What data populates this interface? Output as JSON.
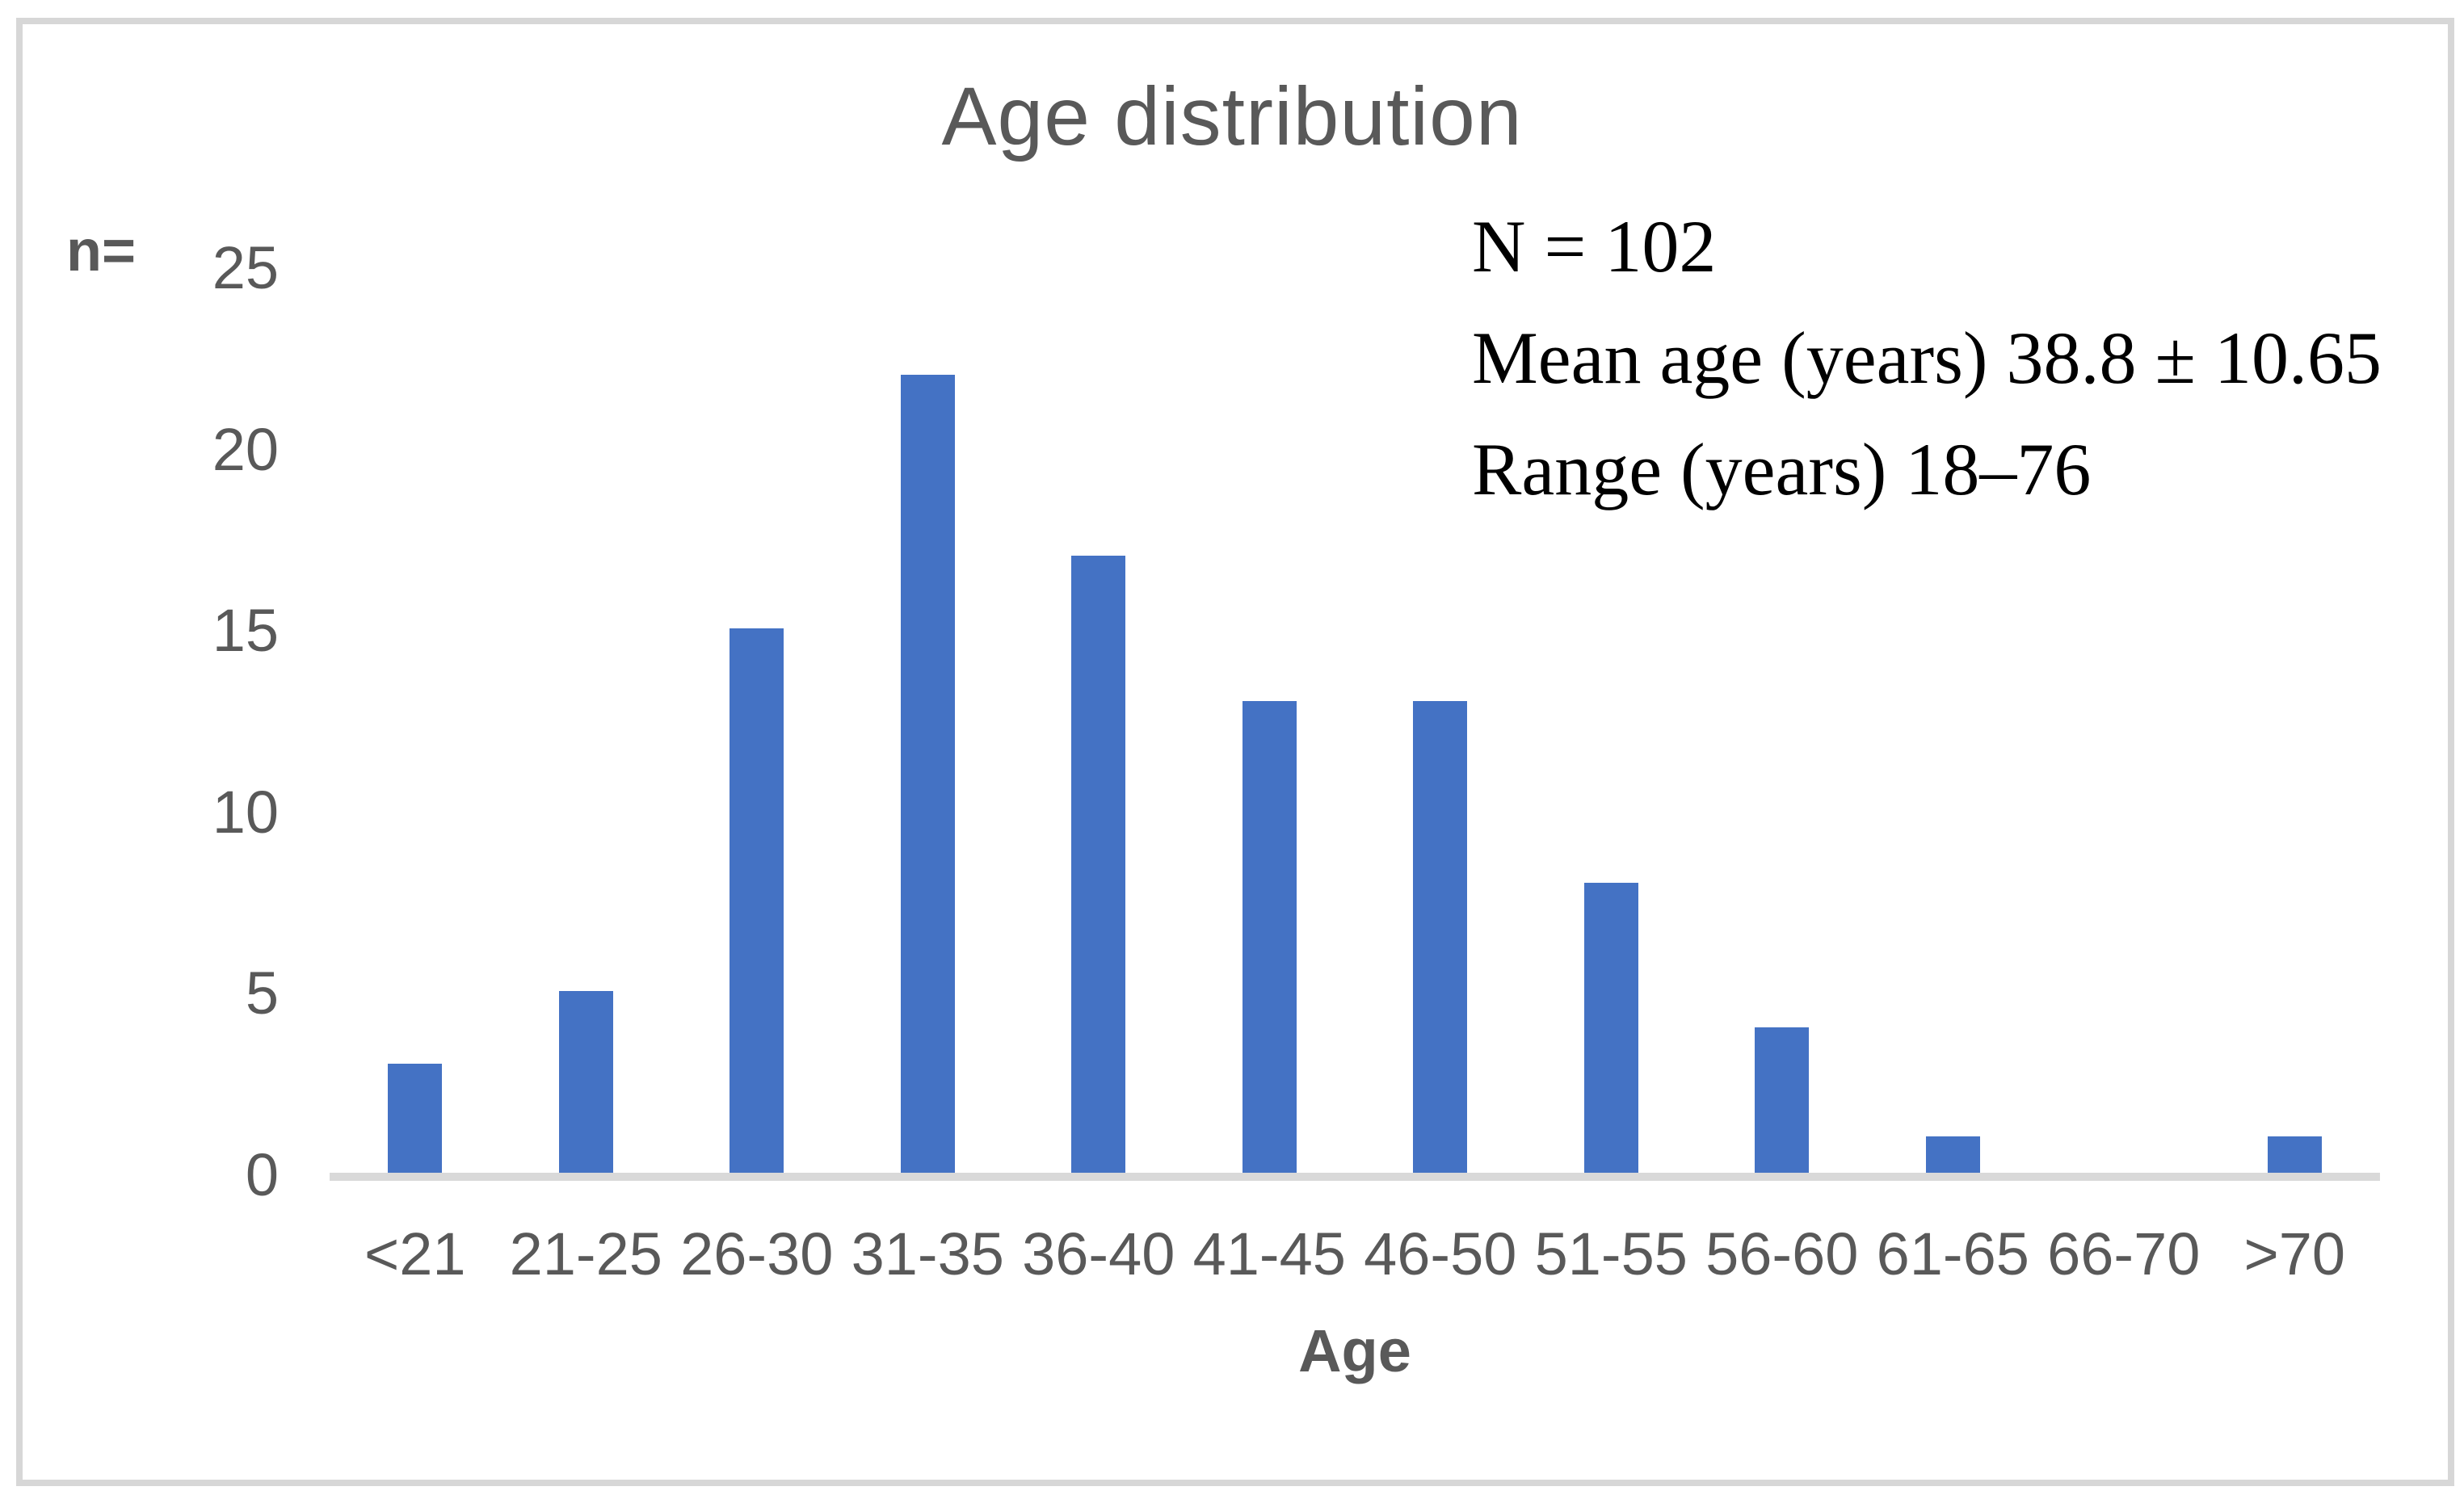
{
  "chart_data": {
    "type": "bar",
    "title": "Age distribution",
    "categories": [
      "<21",
      "21-25",
      "26-30",
      "31-35",
      "36-40",
      "41-45",
      "46-50",
      "51-55",
      "56-60",
      "61-65",
      "66-70",
      ">70"
    ],
    "values": [
      3,
      5,
      15,
      22,
      17,
      13,
      13,
      8,
      4,
      1,
      0,
      1
    ],
    "xlabel": "Age",
    "ylabel": "n=",
    "yticks": [
      0,
      5,
      10,
      15,
      20,
      25
    ],
    "ylim": [
      0,
      25
    ],
    "grid": false,
    "legend": false,
    "annotations": [
      "N = 102",
      "Mean age (years) 38.8 ± 10.65",
      "Range (years) 18–76"
    ]
  },
  "colors": {
    "bar": "#4472C4",
    "axis_text": "#595959",
    "baseline": "#D9D9D9",
    "frame_border": "#D7D7D7",
    "annotation_text": "#000000",
    "background": "#FFFFFF"
  }
}
